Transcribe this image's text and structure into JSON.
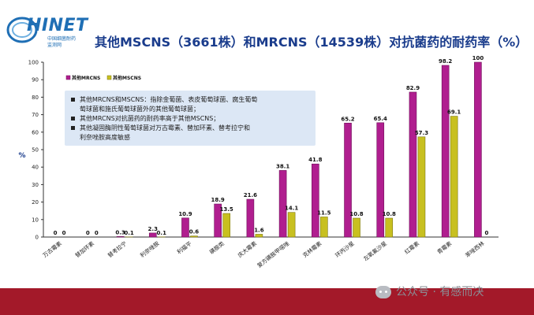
{
  "header": {
    "logo_text": "HINET",
    "logo_sub_1": "中国细菌耐药",
    "logo_sub_2": "监测网",
    "title": "其他MSCNS（3661株）和MRCNS（14539株）对抗菌药的耐药率（%）"
  },
  "notes": [
    "其他MRCNS和MSCNS：指除金葡菌、表皮葡萄球菌、腐生葡萄",
    "萄球菌和施氏葡萄球菌外的其他葡萄球菌；",
    "其他MRCNS对抗菌药的耐药率高于其他MSCNS；",
    "其他凝固酶阴性葡萄球菌对万古霉素、替加环素、替考拉宁和",
    "利奈唑胺高度敏感"
  ],
  "watermark": "公众号 · 有感而决",
  "colors": {
    "mrcns": "#b01e8f",
    "mscns": "#c8c020",
    "footer": "#a31929",
    "title": "#1a3c8c"
  },
  "chart_data": {
    "type": "bar",
    "ylabel": "%",
    "ylim": [
      0,
      100
    ],
    "yticks": [
      "0",
      "10",
      "20",
      "30",
      "40",
      "50",
      "60",
      "70",
      "80",
      "90",
      "100"
    ],
    "grid": false,
    "legend_position": "top-left",
    "categories": [
      "万古霉素",
      "替加环素",
      "替考拉宁",
      "利奈唑胺",
      "利福平",
      "磺胺类",
      "庆大霉素",
      "复方磺胺甲噁唑",
      "克林霉素",
      "环丙沙星",
      "左氧氟沙星",
      "红霉素",
      "青霉素",
      "苯唑西林"
    ],
    "series": [
      {
        "name": "其他MRCNS",
        "values": [
          0,
          0,
          0.3,
          2.3,
          10.9,
          18.9,
          21.6,
          38.1,
          41.8,
          65.2,
          65.4,
          82.9,
          98.2,
          100
        ],
        "labels": [
          "0",
          "0",
          "0.3",
          "2.3",
          "10.9",
          "18.9",
          "21.6",
          "38.1",
          "41.8",
          "65.2",
          "65.4",
          "82.9",
          "98.2",
          "100"
        ]
      },
      {
        "name": "其他MSCNS",
        "values": [
          0,
          0,
          0.1,
          0.1,
          0.6,
          13.5,
          1.6,
          14.1,
          11.5,
          10.8,
          10.8,
          57.3,
          69.1,
          0
        ],
        "labels": [
          "0",
          "0",
          "0.1",
          "0.1",
          "0.6",
          "13.5",
          "1.6",
          "14.1",
          "11.5",
          "10.8",
          "10.8",
          "57.3",
          "69.1",
          "0"
        ]
      }
    ]
  }
}
